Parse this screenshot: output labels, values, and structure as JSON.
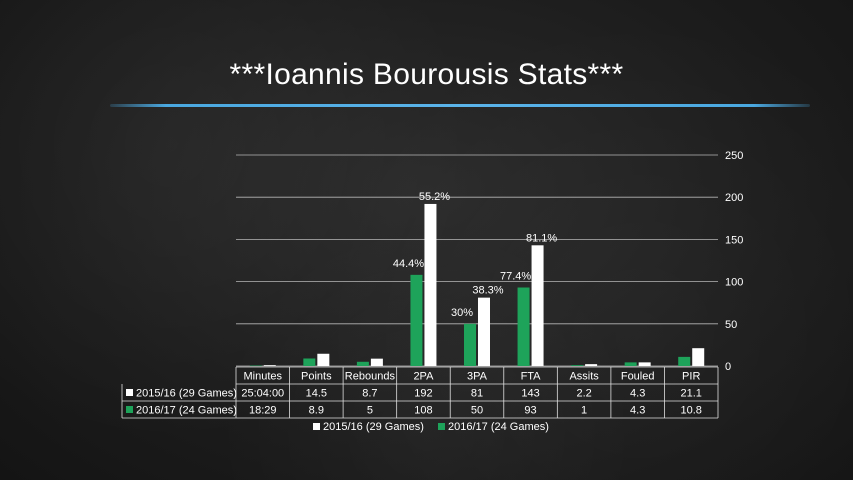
{
  "slide": {
    "title": "***Ioannis Bourousis Stats***"
  },
  "colors": {
    "series_2015": "#ffffff",
    "series_2016": "#1ea35a",
    "accent_rule": "#4aa8e0",
    "text": "#ffffff",
    "grid": "#d0d0d0"
  },
  "chart_data": {
    "type": "bar",
    "categories": [
      "Minutes",
      "Points",
      "Rebounds",
      "2PA",
      "3PA",
      "FTA",
      "Assits",
      "Fouled",
      "PIR"
    ],
    "series": [
      {
        "name": "2015/16 (29 Games)",
        "values": [
          1,
          14.5,
          8.7,
          192,
          81,
          143,
          2.2,
          4.3,
          21.1
        ],
        "table_values": [
          "25:04:00",
          "14.5",
          "8.7",
          "192",
          "81",
          "143",
          "2.2",
          "4.3",
          "21.1"
        ],
        "color": "#ffffff",
        "data_labels": [
          "",
          "",
          "",
          "55.2%",
          "38.3%",
          "81.1%",
          "",
          "",
          ""
        ]
      },
      {
        "name": "2016/17 (24 Games)",
        "values": [
          0.5,
          8.9,
          5,
          108,
          50,
          93,
          1,
          4.3,
          10.8
        ],
        "table_values": [
          "18:29",
          "8.9",
          "5",
          "108",
          "50",
          "93",
          "1",
          "4.3",
          "10.8"
        ],
        "color": "#1ea35a",
        "data_labels": [
          "",
          "",
          "",
          "44.4%",
          "30%",
          "77.4%",
          "",
          "",
          ""
        ]
      }
    ],
    "y_axis": {
      "min": 0,
      "max": 250,
      "ticks": [
        0,
        50,
        100,
        150,
        200,
        250
      ],
      "position": "right"
    },
    "grid": true,
    "legend": {
      "placement": "bottom",
      "entries": [
        "2015/16 (29 Games)",
        "2016/17 (24 Games)"
      ]
    },
    "data_table": true
  }
}
